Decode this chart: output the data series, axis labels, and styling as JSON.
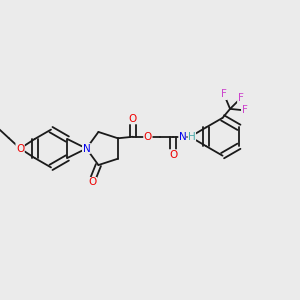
{
  "background_color": "#ebebeb",
  "figsize": [
    3.0,
    3.0
  ],
  "dpi": 100,
  "bond_color": "#1a1a1a",
  "bond_width": 1.3,
  "colors": {
    "N": "#0000ee",
    "O": "#ee0000",
    "F": "#cc44cc",
    "H": "#44aaaa",
    "C": "#1a1a1a"
  },
  "font_size": 7.5
}
